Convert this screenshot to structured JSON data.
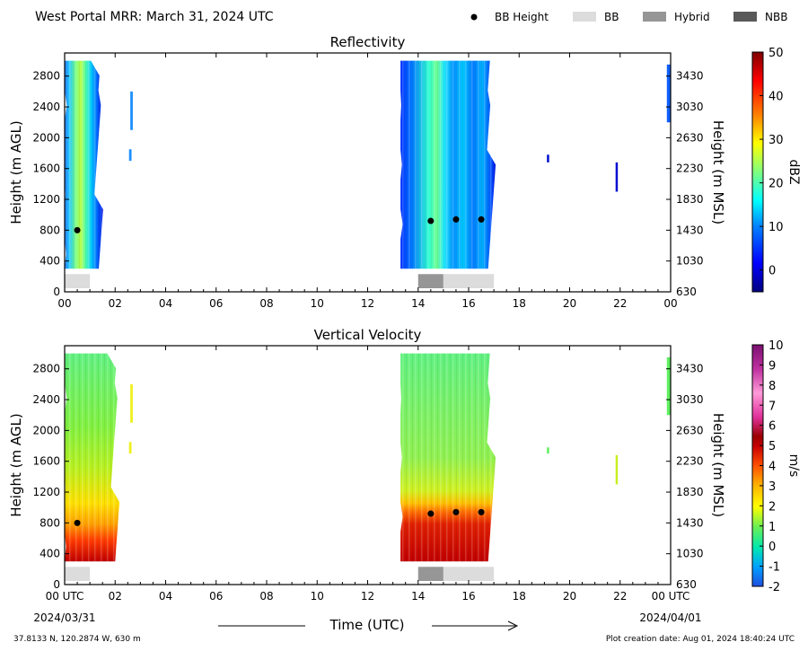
{
  "header": {
    "title": "West Portal MRR:  March 31, 2024 UTC",
    "legend": [
      {
        "label": "BB Height",
        "kind": "dot",
        "color": "#000000"
      },
      {
        "label": "BB",
        "kind": "box",
        "color": "#dcdcdc"
      },
      {
        "label": "Hybrid",
        "kind": "box",
        "color": "#969696"
      },
      {
        "label": "NBB",
        "kind": "box",
        "color": "#595959"
      }
    ]
  },
  "footer": {
    "location": "37.8133 N, 120.2874 W, 630 m",
    "creation": "Plot creation date: Aug 01, 2024 18:40:24 UTC",
    "x_center_label": "Time (UTC)",
    "start_date": "2024/03/31",
    "end_date": "2024/04/01"
  },
  "chart_data": [
    {
      "type": "heatmap",
      "title": "Reflectivity",
      "ylabel": "Height (m AGL)",
      "ylabel_right": "Height (m MSL)",
      "colorbar_label": "dBZ",
      "xlim": [
        0,
        24
      ],
      "ylim": [
        0,
        3100
      ],
      "x_ticks": [
        "00",
        "02",
        "04",
        "06",
        "08",
        "10",
        "12",
        "14",
        "16",
        "18",
        "20",
        "22",
        "00"
      ],
      "y_ticks": [
        0,
        400,
        800,
        1200,
        1600,
        2000,
        2400,
        2800
      ],
      "y_ticks_right": [
        "630",
        "1030",
        "1430",
        "1830",
        "2230",
        "2630",
        "3030",
        "3430"
      ],
      "colorbar": {
        "min": -5,
        "max": 50,
        "ticks": [
          0,
          10,
          20,
          30,
          40,
          50
        ],
        "colormap": [
          "#00007f",
          "#0000ff",
          "#007fff",
          "#00ffff",
          "#7fff7f",
          "#ffff00",
          "#ff7f00",
          "#ff0000",
          "#7f0000"
        ]
      },
      "bb_height_points": [
        {
          "x": 0.5,
          "y": 800
        },
        {
          "x": 14.5,
          "y": 920
        },
        {
          "x": 15.5,
          "y": 940
        },
        {
          "x": 16.5,
          "y": 940
        }
      ],
      "bb_type_bars": [
        {
          "start": 0.0,
          "end": 1.0,
          "type": "BB"
        },
        {
          "start": 14.0,
          "end": 15.0,
          "type": "Hybrid"
        },
        {
          "start": 15.0,
          "end": 17.0,
          "type": "BB"
        }
      ],
      "echo_regions": [
        {
          "x_start": 0.0,
          "x_end": 1.35,
          "y_bottom": 300,
          "y_top": 3000,
          "core": 0.6,
          "level": "green-yellow core, blue edges"
        },
        {
          "x_start": 2.6,
          "x_end": 2.7,
          "y_bottom": 2100,
          "y_top": 2600,
          "level": "light blue"
        },
        {
          "x_start": 2.55,
          "x_end": 2.65,
          "y_bottom": 1700,
          "y_top": 1850,
          "level": "light blue"
        },
        {
          "x_start": 13.3,
          "x_end": 16.9,
          "y_bottom": 300,
          "y_top": 3000,
          "core": 14.6,
          "level": "cyan-green core, blue edges"
        },
        {
          "x_start": 19.1,
          "x_end": 19.15,
          "y_bottom": 1680,
          "y_top": 1780,
          "level": "dark blue"
        },
        {
          "x_start": 21.82,
          "x_end": 21.88,
          "y_bottom": 1300,
          "y_top": 1680,
          "level": "dark blue"
        },
        {
          "x_start": 23.85,
          "x_end": 24.0,
          "y_bottom": 2200,
          "y_top": 2950,
          "level": "blue"
        }
      ]
    },
    {
      "type": "heatmap",
      "title": "Vertical Velocity",
      "ylabel": "Height (m AGL)",
      "ylabel_right": "Height (m MSL)",
      "colorbar_label": "m/s",
      "xlim": [
        0,
        24
      ],
      "ylim": [
        0,
        3100
      ],
      "x_ticks": [
        "00 UTC",
        "02",
        "04",
        "06",
        "08",
        "10",
        "12",
        "14",
        "16",
        "18",
        "20",
        "22",
        "00 UTC"
      ],
      "y_ticks": [
        0,
        400,
        800,
        1200,
        1600,
        2000,
        2400,
        2800
      ],
      "y_ticks_right": [
        "630",
        "1030",
        "1430",
        "1830",
        "2230",
        "2630",
        "3030",
        "3430"
      ],
      "colorbar": {
        "min": -2,
        "max": 10,
        "ticks": [
          -2,
          -1,
          0,
          1,
          2,
          3,
          4,
          5,
          6,
          7,
          8,
          9,
          10
        ],
        "colormap": [
          "#1f4fe0",
          "#00c0ff",
          "#00e8a0",
          "#80f040",
          "#ffff00",
          "#ffb000",
          "#ff5a00",
          "#c80000",
          "#9a0000",
          "#e0309a",
          "#ff9ad8",
          "#c030a0",
          "#8a1a7a"
        ]
      },
      "bb_height_points": [
        {
          "x": 0.5,
          "y": 800
        },
        {
          "x": 14.5,
          "y": 920
        },
        {
          "x": 15.5,
          "y": 940
        },
        {
          "x": 16.5,
          "y": 940
        }
      ],
      "bb_type_bars": [
        {
          "start": 0.0,
          "end": 1.0,
          "type": "BB"
        },
        {
          "start": 14.0,
          "end": 15.0,
          "type": "Hybrid"
        },
        {
          "start": 15.0,
          "end": 17.0,
          "type": "BB"
        }
      ],
      "echo_regions": [
        {
          "x_start": 0.0,
          "x_end": 2.0,
          "y_bottom": 300,
          "y_top": 3000,
          "level": "green aloft, yellow/orange mid, red near ground"
        },
        {
          "x_start": 2.6,
          "x_end": 2.7,
          "y_bottom": 2100,
          "y_top": 2600,
          "level": "yellow"
        },
        {
          "x_start": 2.55,
          "x_end": 2.65,
          "y_bottom": 1700,
          "y_top": 1850,
          "level": "yellow"
        },
        {
          "x_start": 13.3,
          "x_end": 16.9,
          "y_bottom": 300,
          "y_top": 3000,
          "level": "green aloft, yellow/orange 1000 m, red below 800 m"
        },
        {
          "x_start": 19.1,
          "x_end": 19.15,
          "y_bottom": 1700,
          "y_top": 1780,
          "level": "green"
        },
        {
          "x_start": 21.82,
          "x_end": 21.88,
          "y_bottom": 1300,
          "y_top": 1680,
          "level": "yellow-green"
        },
        {
          "x_start": 23.85,
          "x_end": 24.0,
          "y_bottom": 2200,
          "y_top": 2950,
          "level": "green"
        }
      ]
    }
  ]
}
